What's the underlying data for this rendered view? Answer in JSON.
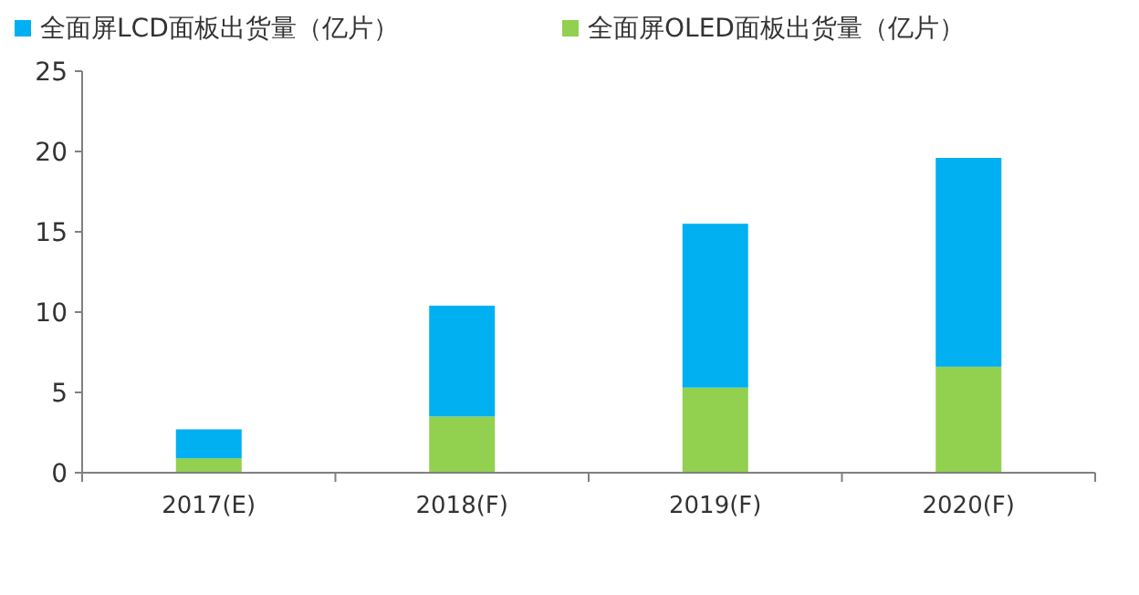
{
  "chart_data": {
    "type": "bar",
    "stacked": true,
    "legend": "top",
    "categories": [
      "2017(E)",
      "2018(F)",
      "2019(F)",
      "2020(F)"
    ],
    "series": [
      {
        "name": "全面屏OLED面板出货量（亿片）",
        "color": "#92d050",
        "values": [
          0.9,
          3.5,
          5.3,
          6.6
        ]
      },
      {
        "name": "全面屏LCD面板出货量（亿片）",
        "color": "#00b0f0",
        "values": [
          1.8,
          6.9,
          10.2,
          13.0
        ]
      }
    ],
    "ylim": [
      0,
      25
    ],
    "yticks": [
      0,
      5,
      10,
      15,
      20,
      25
    ]
  }
}
